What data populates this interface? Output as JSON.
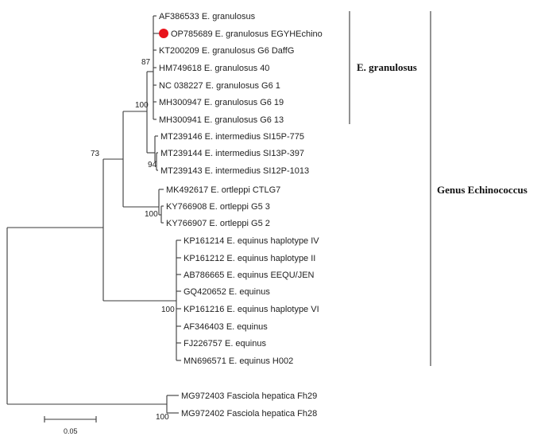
{
  "taxa": [
    {
      "id": "t1",
      "label": "AF386533 E. granulosus",
      "marked": false
    },
    {
      "id": "t2",
      "label": "OP785689 E. granulosus EGYHEchino",
      "marked": true
    },
    {
      "id": "t3",
      "label": "KT200209 E. granulosus G6 DaffG",
      "marked": false
    },
    {
      "id": "t4",
      "label": "HM749618 E. granulosus 40",
      "marked": false
    },
    {
      "id": "t5",
      "label": "NC 038227 E. granulosus G6 1",
      "marked": false
    },
    {
      "id": "t6",
      "label": "MH300947 E. granulosus G6 19",
      "marked": false
    },
    {
      "id": "t7",
      "label": "MH300941 E. granulosus G6 13",
      "marked": false
    },
    {
      "id": "t8",
      "label": "MT239146 E. intermedius SI15P-775",
      "marked": false
    },
    {
      "id": "t9",
      "label": "MT239144 E. intermedius SI13P-397",
      "marked": false
    },
    {
      "id": "t10",
      "label": "MT239143 E. intermedius SI12P-1013",
      "marked": false
    },
    {
      "id": "t11",
      "label": "MK492617 E. ortleppi CTLG7",
      "marked": false
    },
    {
      "id": "t12",
      "label": "KY766908 E. ortleppi G5 3",
      "marked": false
    },
    {
      "id": "t13",
      "label": "KY766907 E. ortleppi G5 2",
      "marked": false
    },
    {
      "id": "t14",
      "label": "KP161214 E. equinus haplotype IV",
      "marked": false
    },
    {
      "id": "t15",
      "label": "KP161212 E. equinus haplotype II",
      "marked": false
    },
    {
      "id": "t16",
      "label": "AB786665 E. equinus EEQU/JEN",
      "marked": false
    },
    {
      "id": "t17",
      "label": "GQ420652 E. equinus",
      "marked": false
    },
    {
      "id": "t18",
      "label": "KP161216 E. equinus haplotype VI",
      "marked": false
    },
    {
      "id": "t19",
      "label": "AF346403 E. equinus",
      "marked": false
    },
    {
      "id": "t20",
      "label": "FJ226757 E. equinus",
      "marked": false
    },
    {
      "id": "t21",
      "label": "MN696571 E. equinus H002",
      "marked": false
    },
    {
      "id": "t22",
      "label": "MG972403 Fasciola hepatica Fh29",
      "marked": false
    },
    {
      "id": "t23",
      "label": "MG972402 Fasciola hepatica Fh28",
      "marked": false
    }
  ],
  "bootstrap": [
    {
      "id": "b87",
      "value": "87"
    },
    {
      "id": "b100g",
      "value": "100"
    },
    {
      "id": "b94",
      "value": "94"
    },
    {
      "id": "b73",
      "value": "73"
    },
    {
      "id": "b100o",
      "value": "100"
    },
    {
      "id": "b100e",
      "value": "100"
    },
    {
      "id": "b100f",
      "value": "100"
    }
  ],
  "clades": {
    "granulosus": "E. granulosus",
    "genus": "Genus Echinococcus"
  },
  "scale_bar": {
    "label": "0.05"
  },
  "colors": {
    "branch": "#3a3a3a",
    "marker": "#e8141c"
  }
}
